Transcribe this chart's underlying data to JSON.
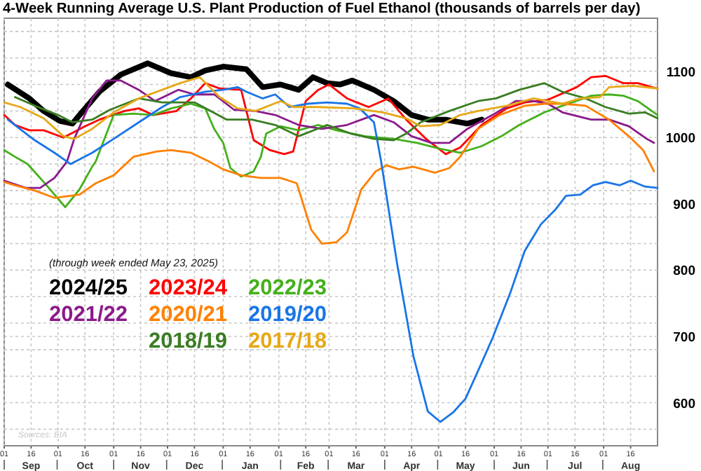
{
  "chart_data": {
    "type": "line",
    "title": "4-Week Running Average U.S. Plant Production of Fuel Ethanol (thousands of barrels per day)",
    "subtitle": "(through week ended May 23, 2025)",
    "annotations": [
      "Sources: EIA"
    ],
    "xlim": [
      "2024-09-01",
      "2025-08-31"
    ],
    "xticks": [
      {
        "value": "2024-09-01",
        "label": "01"
      },
      {
        "value": "2024-09-16",
        "label": "16"
      },
      {
        "value": "2024-10-01",
        "label": "01"
      },
      {
        "value": "2024-10-16",
        "label": "16"
      },
      {
        "value": "2024-11-01",
        "label": "01"
      },
      {
        "value": "2024-11-16",
        "label": "16"
      },
      {
        "value": "2024-12-01",
        "label": "01"
      },
      {
        "value": "2024-12-16",
        "label": "16"
      },
      {
        "value": "2025-01-01",
        "label": "01"
      },
      {
        "value": "2025-01-16",
        "label": "16"
      },
      {
        "value": "2025-02-01",
        "label": "01"
      },
      {
        "value": "2025-02-16",
        "label": "16"
      },
      {
        "value": "2025-03-01",
        "label": "01"
      },
      {
        "value": "2025-03-16",
        "label": "16"
      },
      {
        "value": "2025-04-01",
        "label": "01"
      },
      {
        "value": "2025-04-16",
        "label": "16"
      },
      {
        "value": "2025-05-01",
        "label": "01"
      },
      {
        "value": "2025-05-16",
        "label": "16"
      },
      {
        "value": "2025-06-01",
        "label": "01"
      },
      {
        "value": "2025-06-16",
        "label": "16"
      },
      {
        "value": "2025-07-01",
        "label": "01"
      },
      {
        "value": "2025-07-16",
        "label": "16"
      },
      {
        "value": "2025-08-01",
        "label": "01"
      },
      {
        "value": "2025-08-16",
        "label": "16"
      }
    ],
    "x2lim": [
      "2024-09-01",
      "2025-08-31"
    ],
    "x2ticks": [
      {
        "value": "2024-09-16",
        "label": "Sep"
      },
      {
        "value": "2024-10-16",
        "label": "Oct"
      },
      {
        "value": "2024-11-16",
        "label": "Nov"
      },
      {
        "value": "2024-12-16",
        "label": "Dec"
      },
      {
        "value": "2025-01-16",
        "label": "Jan"
      },
      {
        "value": "2025-02-16",
        "label": "Feb"
      },
      {
        "value": "2025-03-16",
        "label": "Mar"
      },
      {
        "value": "2025-04-16",
        "label": "Apr"
      },
      {
        "value": "2025-05-16",
        "label": "May"
      },
      {
        "value": "2025-06-16",
        "label": "Jun"
      },
      {
        "value": "2025-07-16",
        "label": "Jul"
      },
      {
        "value": "2025-08-16",
        "label": "Aug"
      }
    ],
    "ylim": [
      535,
      1180
    ],
    "yticks": [
      {
        "value": 560,
        "label": null
      },
      600,
      {
        "value": 640,
        "label": null
      },
      {
        "value": 680,
        "label": null
      },
      700,
      {
        "value": 720,
        "label": null
      },
      {
        "value": 760,
        "label": null
      },
      800,
      {
        "value": 840,
        "label": null
      },
      {
        "value": 880,
        "label": null
      },
      900,
      {
        "value": 920,
        "label": null
      },
      {
        "value": 960,
        "label": null
      },
      1000,
      {
        "value": 1040,
        "label": null
      },
      {
        "value": 1080,
        "label": null
      },
      1100,
      {
        "value": 1120,
        "label": null
      },
      {
        "value": 1160,
        "label": null
      }
    ],
    "grid": true,
    "legend": "left",
    "marker": "none",
    "line_style": "solid",
    "series": [
      {
        "name": "2024/25",
        "color": "#000000",
        "x": [
          "2024-09-03",
          "2024-09-15",
          "2024-09-23",
          "2024-10-02",
          "2024-10-09",
          "2024-10-13",
          "2024-10-24",
          "2024-11-05",
          "2024-11-20",
          "2024-12-03",
          "2024-12-14",
          "2024-12-22",
          "2025-01-01",
          "2025-01-14",
          "2025-01-23",
          "2025-02-02",
          "2025-02-12",
          "2025-02-20",
          "2025-02-28",
          "2025-03-07",
          "2025-03-14",
          "2025-03-26",
          "2025-04-06",
          "2025-04-16",
          "2025-04-25",
          "2025-05-05",
          "2025-05-17",
          "2025-05-25"
        ],
        "values": [
          1080,
          1059,
          1040,
          1025,
          1021,
          1034,
          1069,
          1095,
          1112,
          1097,
          1091,
          1101,
          1107,
          1103,
          1076,
          1080,
          1072,
          1091,
          1082,
          1080,
          1086,
          1072,
          1055,
          1034,
          1027,
          1027,
          1021,
          1027
        ]
      },
      {
        "name": "2023/24",
        "color": "#ff0000",
        "x": [
          "2024-09-01",
          "2024-09-07",
          "2024-09-15",
          "2024-09-23",
          "2024-10-04",
          "2024-10-16",
          "2024-10-24",
          "2024-11-07",
          "2024-11-15",
          "2024-11-23",
          "2024-12-06",
          "2024-12-14",
          "2024-12-22",
          "2024-12-30",
          "2025-01-11",
          "2025-01-18",
          "2025-01-27",
          "2025-02-04",
          "2025-02-09",
          "2025-02-16",
          "2025-02-23",
          "2025-03-01",
          "2025-03-11",
          "2025-03-23",
          "2025-04-03",
          "2025-04-13",
          "2025-04-24",
          "2025-05-05",
          "2025-05-13",
          "2025-05-25",
          "2025-06-08",
          "2025-06-18",
          "2025-07-01",
          "2025-07-17",
          "2025-07-25",
          "2025-08-02",
          "2025-08-12",
          "2025-08-20",
          "2025-08-28",
          "2025-08-31"
        ],
        "values": [
          1034,
          1019,
          1011,
          1011,
          1000,
          1017,
          1027,
          1040,
          1044,
          1034,
          1040,
          1059,
          1082,
          1074,
          1072,
          996,
          981,
          975,
          979,
          1055,
          1072,
          1080,
          1059,
          1046,
          1059,
          1027,
          998,
          975,
          985,
          1019,
          1044,
          1053,
          1057,
          1076,
          1091,
          1093,
          1082,
          1082,
          1076,
          1074
        ]
      },
      {
        "name": "2022/23",
        "color": "#44b01c",
        "x": [
          "2024-09-01",
          "2024-09-07",
          "2024-09-14",
          "2024-09-23",
          "2024-10-05",
          "2024-10-13",
          "2024-10-20",
          "2024-10-22",
          "2024-11-01",
          "2024-11-12",
          "2024-11-23",
          "2024-12-03",
          "2024-12-14",
          "2024-12-22",
          "2024-12-27",
          "2025-01-01",
          "2025-01-05",
          "2025-01-11",
          "2025-01-18",
          "2025-01-22",
          "2025-01-25",
          "2025-02-02",
          "2025-02-12",
          "2025-02-23",
          "2025-03-05",
          "2025-03-21",
          "2025-04-06",
          "2025-04-19",
          "2025-05-02",
          "2025-05-13",
          "2025-05-25",
          "2025-06-05",
          "2025-06-15",
          "2025-06-29",
          "2025-07-09",
          "2025-07-25",
          "2025-08-04",
          "2025-08-12",
          "2025-08-20",
          "2025-08-31"
        ],
        "values": [
          981,
          971,
          960,
          933,
          895,
          922,
          956,
          964,
          1034,
          1036,
          1034,
          1044,
          1051,
          1044,
          1013,
          992,
          954,
          941,
          949,
          971,
          1006,
          1017,
          1011,
          1019,
          1011,
          1002,
          998,
          992,
          983,
          977,
          987,
          1002,
          1019,
          1038,
          1048,
          1063,
          1065,
          1063,
          1055,
          1034
        ]
      },
      {
        "name": "2021/22",
        "color": "#8b1a8b",
        "x": [
          "2024-09-01",
          "2024-09-13",
          "2024-09-21",
          "2024-09-29",
          "2024-10-06",
          "2024-10-10",
          "2024-10-20",
          "2024-10-28",
          "2024-11-05",
          "2024-11-15",
          "2024-11-24",
          "2024-12-07",
          "2024-12-16",
          "2024-12-27",
          "2025-01-07",
          "2025-01-19",
          "2025-01-30",
          "2025-02-12",
          "2025-02-25",
          "2025-03-11",
          "2025-03-26",
          "2025-04-06",
          "2025-04-16",
          "2025-04-27",
          "2025-05-07",
          "2025-05-17",
          "2025-05-31",
          "2025-06-13",
          "2025-06-23",
          "2025-07-01",
          "2025-07-09",
          "2025-07-25",
          "2025-08-04",
          "2025-08-15",
          "2025-08-25",
          "2025-08-29"
        ],
        "values": [
          935,
          924,
          924,
          939,
          964,
          998,
          1059,
          1086,
          1086,
          1072,
          1055,
          1072,
          1065,
          1065,
          1042,
          1040,
          1034,
          1019,
          1013,
          1019,
          1034,
          1023,
          1002,
          992,
          992,
          1013,
          1034,
          1055,
          1055,
          1051,
          1038,
          1027,
          1027,
          1017,
          998,
          992
        ]
      },
      {
        "name": "2020/21",
        "color": "#ff8000",
        "x": [
          "2024-09-01",
          "2024-09-07",
          "2024-09-18",
          "2024-09-29",
          "2024-10-13",
          "2024-10-22",
          "2024-11-01",
          "2024-11-12",
          "2024-11-25",
          "2024-12-03",
          "2024-12-14",
          "2024-12-24",
          "2025-01-01",
          "2025-01-11",
          "2025-01-22",
          "2025-02-02",
          "2025-02-11",
          "2025-02-19",
          "2025-02-25",
          "2025-03-05",
          "2025-03-11",
          "2025-03-19",
          "2025-03-27",
          "2025-04-02",
          "2025-04-09",
          "2025-04-17",
          "2025-04-29",
          "2025-05-07",
          "2025-05-13",
          "2025-05-23",
          "2025-06-04",
          "2025-06-18",
          "2025-06-29",
          "2025-07-09",
          "2025-07-22",
          "2025-08-04",
          "2025-08-15",
          "2025-08-23",
          "2025-08-29"
        ],
        "values": [
          933,
          928,
          920,
          909,
          914,
          931,
          943,
          971,
          979,
          981,
          977,
          964,
          952,
          943,
          939,
          939,
          931,
          861,
          840,
          842,
          857,
          922,
          949,
          958,
          952,
          956,
          947,
          954,
          971,
          1013,
          1034,
          1048,
          1051,
          1051,
          1048,
          1027,
          1002,
          981,
          949
        ]
      },
      {
        "name": "2019/20",
        "color": "#1a75e8",
        "x": [
          "2024-09-03",
          "2024-09-18",
          "2024-09-29",
          "2024-10-08",
          "2024-10-20",
          "2024-11-01",
          "2024-11-15",
          "2024-11-28",
          "2024-12-08",
          "2024-12-22",
          "2025-01-01",
          "2025-01-09",
          "2025-01-14",
          "2025-01-23",
          "2025-01-30",
          "2025-02-07",
          "2025-02-17",
          "2025-02-28",
          "2025-03-11",
          "2025-03-18",
          "2025-03-26",
          "2025-03-30",
          "2025-04-08",
          "2025-04-17",
          "2025-04-25",
          "2025-05-02",
          "2025-05-09",
          "2025-05-16",
          "2025-05-23",
          "2025-05-31",
          "2025-06-10",
          "2025-06-18",
          "2025-06-27",
          "2025-07-05",
          "2025-07-11",
          "2025-07-19",
          "2025-07-26",
          "2025-08-02",
          "2025-08-10",
          "2025-08-16",
          "2025-08-24",
          "2025-08-31"
        ],
        "values": [
          1027,
          996,
          977,
          960,
          977,
          998,
          1023,
          1046,
          1061,
          1069,
          1072,
          1076,
          1069,
          1059,
          1065,
          1046,
          1051,
          1053,
          1051,
          1044,
          1023,
          964,
          808,
          670,
          587,
          571,
          585,
          606,
          648,
          697,
          766,
          829,
          869,
          891,
          912,
          914,
          928,
          933,
          928,
          935,
          926,
          924
        ]
      },
      {
        "name": "2018/19",
        "color": "#3a7d22",
        "x": [
          "2024-09-07",
          "2024-09-18",
          "2024-10-01",
          "2024-10-09",
          "2024-10-20",
          "2024-10-30",
          "2024-11-15",
          "2024-11-28",
          "2024-12-16",
          "2025-01-03",
          "2025-01-17",
          "2025-01-30",
          "2025-02-12",
          "2025-02-28",
          "2025-03-13",
          "2025-03-26",
          "2025-04-06",
          "2025-04-13",
          "2025-04-21",
          "2025-05-07",
          "2025-05-23",
          "2025-06-02",
          "2025-06-15",
          "2025-06-29",
          "2025-07-09",
          "2025-07-22",
          "2025-08-02",
          "2025-08-15",
          "2025-08-24",
          "2025-08-31"
        ],
        "values": [
          1061,
          1048,
          1034,
          1023,
          1027,
          1042,
          1059,
          1053,
          1053,
          1027,
          1027,
          1019,
          1002,
          1019,
          1006,
          998,
          996,
          1006,
          1023,
          1040,
          1055,
          1059,
          1072,
          1082,
          1069,
          1059,
          1046,
          1036,
          1038,
          1029
        ]
      },
      {
        "name": "2017/18",
        "color": "#e6a817",
        "x": [
          "2024-09-01",
          "2024-09-10",
          "2024-09-23",
          "2024-10-04",
          "2024-10-10",
          "2024-10-20",
          "2024-11-01",
          "2024-11-15",
          "2024-11-28",
          "2024-12-08",
          "2024-12-19",
          "2024-12-30",
          "2025-01-09",
          "2025-01-19",
          "2025-02-02",
          "2025-02-09",
          "2025-02-23",
          "2025-03-15",
          "2025-03-31",
          "2025-04-13",
          "2025-04-21",
          "2025-05-02",
          "2025-05-13",
          "2025-05-23",
          "2025-06-08",
          "2025-06-23",
          "2025-07-09",
          "2025-07-19",
          "2025-07-30",
          "2025-08-04",
          "2025-08-17",
          "2025-08-31"
        ],
        "values": [
          1053,
          1046,
          1029,
          1002,
          998,
          1013,
          1038,
          1059,
          1072,
          1082,
          1091,
          1061,
          1044,
          1040,
          1055,
          1046,
          1046,
          1044,
          1038,
          1029,
          1017,
          1019,
          1034,
          1040,
          1048,
          1059,
          1051,
          1059,
          1061,
          1076,
          1078,
          1074
        ]
      }
    ]
  }
}
